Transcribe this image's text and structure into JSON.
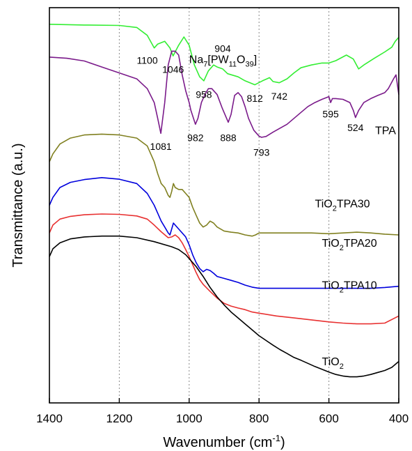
{
  "chart_data": {
    "type": "line",
    "xlabel": "Wavenumber (cm",
    "xlabel_sup": "-1",
    "xlabel_end": ")",
    "ylabel": "Transmittance (a.u.)",
    "xlim": [
      1400,
      400
    ],
    "ylim": [
      0,
      10
    ],
    "x_reversed": true,
    "y_ticks_shown": false,
    "xticks": [
      1400,
      1200,
      1000,
      800,
      600,
      400
    ],
    "xtick_labels": [
      "1400",
      "1200",
      "1000",
      "800",
      "600",
      "400"
    ],
    "grid": {
      "x_dotted": [
        1200,
        1000,
        800,
        600
      ],
      "y": false
    },
    "series": [
      {
        "name_parts": [
          [
            "Na",
            ""
          ],
          [
            "7",
            "sub"
          ],
          [
            "[PW",
            ""
          ],
          [
            "11",
            "sub"
          ],
          [
            "O",
            ""
          ],
          [
            "39",
            "sub"
          ],
          [
            "]",
            ""
          ]
        ],
        "color": "#33ee33",
        "label_at": [
          1000,
          8.6
        ],
        "x": [
          1400,
          1300,
          1200,
          1150,
          1120,
          1100,
          1090,
          1070,
          1055,
          1046,
          1030,
          1015,
          1000,
          985,
          970,
          958,
          945,
          930,
          920,
          904,
          890,
          860,
          840,
          812,
          790,
          770,
          760,
          742,
          720,
          700,
          680,
          650,
          620,
          600,
          580,
          550,
          530,
          515,
          500,
          470,
          440,
          420,
          410,
          400
        ],
        "y": [
          9.58,
          9.56,
          9.55,
          9.5,
          9.3,
          8.98,
          9.08,
          9.15,
          8.98,
          8.78,
          9.05,
          9.26,
          9.05,
          8.55,
          8.25,
          8.15,
          8.4,
          8.55,
          8.5,
          8.45,
          8.33,
          8.25,
          8.15,
          8.05,
          8.15,
          8.23,
          8.13,
          8.1,
          8.2,
          8.35,
          8.48,
          8.55,
          8.6,
          8.6,
          8.66,
          8.8,
          8.7,
          8.45,
          8.55,
          8.72,
          8.88,
          9.0,
          9.15,
          9.25
        ]
      },
      {
        "name_parts": [
          [
            "TPA",
            ""
          ]
        ],
        "color": "#7a1a8a",
        "label_at": [
          408,
          6.8
        ],
        "x": [
          1400,
          1350,
          1300,
          1250,
          1200,
          1150,
          1120,
          1100,
          1090,
          1081,
          1070,
          1060,
          1050,
          1040,
          1030,
          1020,
          1010,
          1000,
          995,
          982,
          975,
          965,
          955,
          945,
          935,
          920,
          905,
          888,
          880,
          870,
          860,
          850,
          840,
          830,
          815,
          800,
          793,
          780,
          760,
          740,
          720,
          700,
          680,
          660,
          640,
          620,
          600,
          595,
          590,
          580,
          560,
          540,
          530,
          524,
          515,
          500,
          480,
          460,
          440,
          430,
          415,
          408,
          400
        ],
        "y": [
          8.75,
          8.72,
          8.65,
          8.5,
          8.35,
          8.2,
          7.95,
          7.6,
          7.2,
          6.82,
          7.6,
          8.55,
          8.9,
          8.9,
          8.8,
          8.3,
          7.9,
          7.6,
          7.4,
          7.05,
          7.2,
          7.6,
          7.8,
          7.95,
          7.95,
          7.8,
          7.45,
          7.1,
          7.3,
          7.78,
          7.85,
          7.75,
          7.5,
          7.2,
          6.9,
          6.75,
          6.72,
          6.74,
          6.85,
          6.95,
          7.05,
          7.2,
          7.35,
          7.5,
          7.6,
          7.68,
          7.75,
          7.6,
          7.7,
          7.7,
          7.68,
          7.6,
          7.4,
          7.22,
          7.4,
          7.6,
          7.7,
          7.78,
          7.85,
          7.95,
          8.2,
          8.3,
          7.8
        ]
      },
      {
        "name_parts": [
          [
            "TiO",
            ""
          ],
          [
            "2",
            "sub"
          ],
          [
            "TPA30",
            ""
          ]
        ],
        "color": "#808020",
        "label_at": [
          640,
          4.95
        ],
        "x": [
          1400,
          1390,
          1370,
          1340,
          1300,
          1250,
          1200,
          1150,
          1120,
          1100,
          1090,
          1080,
          1070,
          1060,
          1055,
          1050,
          1045,
          1040,
          1030,
          1020,
          1010,
          1000,
          990,
          980,
          970,
          960,
          950,
          940,
          930,
          920,
          900,
          880,
          860,
          840,
          820,
          810,
          800,
          750,
          700,
          650,
          600,
          560,
          520,
          480,
          440,
          400
        ],
        "y": [
          6.1,
          6.3,
          6.55,
          6.7,
          6.78,
          6.8,
          6.78,
          6.7,
          6.5,
          6.1,
          5.8,
          5.55,
          5.45,
          5.25,
          5.2,
          5.35,
          5.55,
          5.45,
          5.4,
          5.4,
          5.3,
          5.2,
          4.95,
          4.75,
          4.55,
          4.45,
          4.5,
          4.6,
          4.55,
          4.45,
          4.35,
          4.32,
          4.3,
          4.25,
          4.22,
          4.25,
          4.3,
          4.3,
          4.3,
          4.3,
          4.28,
          4.3,
          4.32,
          4.3,
          4.27,
          4.25
        ]
      },
      {
        "name_parts": [
          [
            "TiO",
            ""
          ],
          [
            "2",
            "sub"
          ],
          [
            "TPA20",
            ""
          ]
        ],
        "color": "#0000dd",
        "label_at": [
          620,
          3.95
        ],
        "x": [
          1400,
          1390,
          1370,
          1340,
          1300,
          1250,
          1200,
          1150,
          1120,
          1100,
          1090,
          1080,
          1070,
          1060,
          1055,
          1050,
          1045,
          1040,
          1030,
          1020,
          1010,
          1000,
          990,
          980,
          970,
          960,
          950,
          940,
          930,
          920,
          900,
          880,
          860,
          840,
          820,
          800,
          750,
          700,
          650,
          600,
          560,
          520,
          480,
          440,
          400
        ],
        "y": [
          5.0,
          5.2,
          5.45,
          5.58,
          5.65,
          5.7,
          5.66,
          5.55,
          5.3,
          5.0,
          4.8,
          4.6,
          4.45,
          4.3,
          4.25,
          4.4,
          4.55,
          4.5,
          4.4,
          4.3,
          4.2,
          4.0,
          3.75,
          3.55,
          3.4,
          3.32,
          3.38,
          3.35,
          3.28,
          3.2,
          3.15,
          3.1,
          3.05,
          2.98,
          2.93,
          2.9,
          2.9,
          2.9,
          2.9,
          2.9,
          2.9,
          2.9,
          2.9,
          2.92,
          2.95
        ]
      },
      {
        "name_parts": [
          [
            "TiO",
            ""
          ],
          [
            "2",
            "sub"
          ],
          [
            "TPA10",
            ""
          ]
        ],
        "color": "#e83030",
        "label_at": [
          620,
          2.88
        ],
        "x": [
          1400,
          1390,
          1370,
          1340,
          1300,
          1250,
          1200,
          1150,
          1120,
          1100,
          1080,
          1060,
          1050,
          1040,
          1030,
          1020,
          1010,
          1000,
          990,
          980,
          970,
          960,
          940,
          920,
          900,
          880,
          860,
          840,
          820,
          800,
          750,
          700,
          650,
          600,
          560,
          520,
          480,
          440,
          400
        ],
        "y": [
          4.3,
          4.5,
          4.65,
          4.72,
          4.76,
          4.78,
          4.77,
          4.73,
          4.65,
          4.5,
          4.33,
          4.18,
          4.2,
          4.25,
          4.18,
          4.05,
          3.88,
          3.7,
          3.5,
          3.3,
          3.12,
          3.0,
          2.82,
          2.65,
          2.52,
          2.45,
          2.4,
          2.36,
          2.3,
          2.27,
          2.2,
          2.15,
          2.1,
          2.05,
          2.02,
          2.0,
          2.0,
          2.02,
          2.2
        ]
      },
      {
        "name_parts": [
          [
            "TiO",
            ""
          ],
          [
            "2",
            "sub"
          ]
        ],
        "color": "#000000",
        "label_at": [
          620,
          0.95
        ],
        "x": [
          1400,
          1390,
          1370,
          1340,
          1300,
          1250,
          1200,
          1150,
          1100,
          1050,
          1030,
          1010,
          1000,
          980,
          960,
          940,
          920,
          900,
          880,
          860,
          840,
          820,
          800,
          780,
          760,
          740,
          720,
          700,
          680,
          660,
          640,
          620,
          600,
          580,
          560,
          540,
          520,
          500,
          480,
          460,
          440,
          420,
          400
        ],
        "y": [
          3.7,
          3.9,
          4.05,
          4.15,
          4.2,
          4.22,
          4.22,
          4.18,
          4.08,
          3.95,
          3.88,
          3.75,
          3.65,
          3.45,
          3.2,
          2.92,
          2.68,
          2.48,
          2.3,
          2.15,
          2.0,
          1.85,
          1.7,
          1.58,
          1.46,
          1.35,
          1.25,
          1.15,
          1.08,
          1.0,
          0.92,
          0.85,
          0.78,
          0.72,
          0.68,
          0.66,
          0.66,
          0.68,
          0.72,
          0.77,
          0.82,
          0.9,
          1.05
        ]
      }
    ],
    "peak_labels": [
      {
        "text": "1100",
        "x": 1120,
        "y": 8.58
      },
      {
        "text": "1046",
        "x": 1046,
        "y": 8.35
      },
      {
        "text": "904",
        "x": 904,
        "y": 8.88
      },
      {
        "text": "958",
        "x": 958,
        "y": 7.72
      },
      {
        "text": "812",
        "x": 812,
        "y": 7.62
      },
      {
        "text": "742",
        "x": 742,
        "y": 7.67
      },
      {
        "text": "1081",
        "x": 1081,
        "y": 6.4
      },
      {
        "text": "982",
        "x": 982,
        "y": 6.62
      },
      {
        "text": "888",
        "x": 888,
        "y": 6.62
      },
      {
        "text": "793",
        "x": 793,
        "y": 6.25
      },
      {
        "text": "595",
        "x": 595,
        "y": 7.22
      },
      {
        "text": "524",
        "x": 524,
        "y": 6.88
      }
    ]
  }
}
